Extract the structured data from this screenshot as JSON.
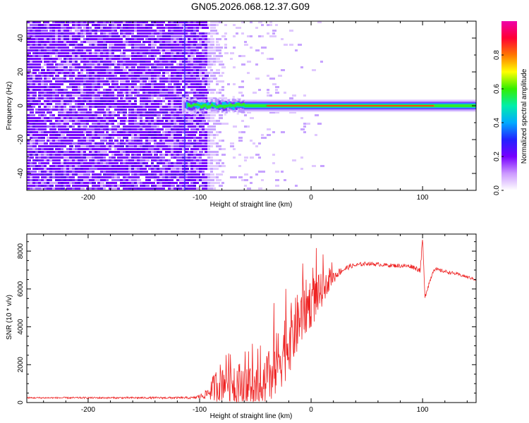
{
  "title": "GN05.2026.068.12.37.G09",
  "colors": {
    "snr_line": "#ee2222",
    "colorbar": [
      "#ee00aa",
      "#ff0033",
      "#ff7700",
      "#ffff00",
      "#33ee00",
      "#00eeaa",
      "#00aaff",
      "#2222ff",
      "#7700ff",
      "#cc99ff",
      "#ffffff"
    ]
  },
  "chart_data": [
    {
      "type": "heatmap",
      "name": "spectrogram",
      "xlabel": "Height of straight line (km)",
      "ylabel": "Frequency (Hz)",
      "xlim": [
        -255,
        148
      ],
      "ylim": [
        -50,
        50
      ],
      "xticks": [
        "-200",
        "-100",
        "0",
        "100"
      ],
      "xtick_values": [
        -200,
        -100,
        0,
        100
      ],
      "yticks": [
        "-40",
        "-20",
        "0",
        "20",
        "40"
      ],
      "ytick_values": [
        -40,
        -20,
        0,
        20,
        40
      ],
      "colorbar": {
        "label": "Normalized spectral amplitude",
        "ticks": [
          "0.0",
          "0.2",
          "0.4",
          "0.6",
          "0.8"
        ],
        "tick_values": [
          0.0,
          0.2,
          0.4,
          0.6,
          0.8
        ],
        "range": [
          0,
          1
        ]
      },
      "description_bands": {
        "noise_region_x": [
          -255,
          -80
        ],
        "signal_line_frequency": 0,
        "signal_start_x": -115,
        "peak_region_x": [
          -40,
          110
        ]
      }
    },
    {
      "type": "line",
      "name": "snr",
      "xlabel": "Height of straight line (km)",
      "ylabel": "SNR (10 * v/v)",
      "xlim": [
        -255,
        148
      ],
      "ylim": [
        0,
        8900
      ],
      "xticks": [
        "-200",
        "-100",
        "0",
        "100"
      ],
      "xtick_values": [
        -200,
        -100,
        0,
        100
      ],
      "yticks": [
        "0",
        "2000",
        "4000",
        "6000",
        "8000"
      ],
      "ytick_values": [
        0,
        2000,
        4000,
        6000,
        8000
      ],
      "envelope": {
        "x": [
          -255,
          -150,
          -105,
          -95,
          -85,
          -75,
          -65,
          -55,
          -45,
          -35,
          -25,
          -15,
          -5,
          5,
          15,
          25,
          35,
          50,
          70,
          90,
          98,
          100,
          102,
          110,
          130,
          148
        ],
        "y": [
          250,
          250,
          250,
          400,
          900,
          1400,
          1000,
          800,
          900,
          1500,
          2800,
          3800,
          5000,
          5600,
          6300,
          6900,
          7200,
          7350,
          7250,
          7200,
          7000,
          8700,
          5600,
          7050,
          6800,
          6500
        ],
        "noise_amplitude": [
          40,
          50,
          60,
          200,
          900,
          1300,
          1200,
          1000,
          1200,
          1600,
          1900,
          1700,
          1500,
          1200,
          500,
          200,
          120,
          100,
          100,
          120,
          150,
          200,
          150,
          100,
          80,
          80
        ]
      }
    }
  ]
}
